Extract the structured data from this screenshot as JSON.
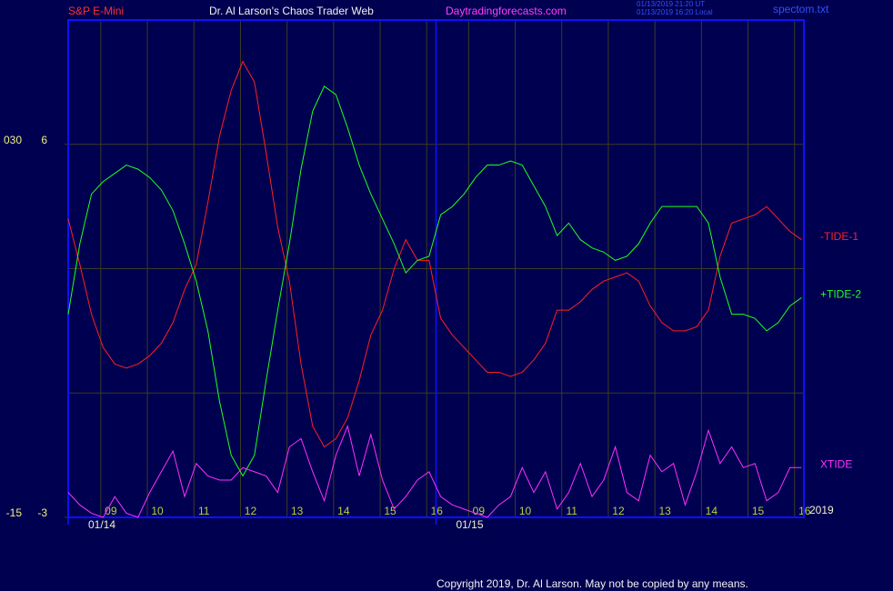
{
  "chart_data": {
    "type": "line",
    "header": {
      "symbol": "S&P E-Mini",
      "title": "Dr. Al Larson's Chaos Trader Web",
      "site": "Daytradingforecasts.com",
      "time_ut": "01/13/2019 21:20 UT",
      "time_local": "01/13/2019 16:20 Local",
      "file": "spectom.txt"
    },
    "copyright": "Copyright 2019, Dr. Al Larson. May not be copied by any means.",
    "year": "2019",
    "x": [
      8.3,
      8.55,
      8.8,
      9.05,
      9.3,
      9.55,
      9.8,
      10.05,
      10.3,
      10.55,
      10.8,
      11.05,
      11.3,
      11.55,
      11.8,
      12.05,
      12.3,
      12.55,
      12.8,
      13.05,
      13.3,
      13.55,
      13.8,
      14.05,
      14.3,
      14.55,
      14.8,
      15.05,
      15.3,
      15.55,
      15.8,
      16.05,
      16.3,
      16.55,
      16.8,
      17.05,
      17.3,
      17.55,
      17.8,
      18.05,
      18.3,
      18.55,
      18.8,
      19.05,
      19.3,
      19.55,
      19.8,
      20.05,
      20.3,
      20.55,
      20.8,
      21.05,
      21.3,
      21.55,
      21.8,
      22.05,
      22.3,
      22.55,
      22.8,
      23.05,
      23.3,
      23.55,
      23.8,
      24.05
    ],
    "xlim": [
      8.3,
      24.1
    ],
    "xticks": [
      {
        "value": 9,
        "label": "09"
      },
      10,
      11,
      12,
      13,
      14,
      15,
      16,
      {
        "value": 16.9,
        "label": "09"
      },
      {
        "value": 17.9,
        "label": "10"
      },
      {
        "value": 18.9,
        "label": "11"
      },
      {
        "value": 19.9,
        "label": "12"
      },
      {
        "value": 20.9,
        "label": "13"
      },
      {
        "value": 21.9,
        "label": "14"
      },
      {
        "value": 22.9,
        "label": "15"
      },
      {
        "value": 23.9,
        "label": "16"
      }
    ],
    "dates": [
      {
        "value": 8.3,
        "label": "01/14"
      },
      {
        "value": 16.2,
        "label": "01/15"
      }
    ],
    "ylim": [
      -3,
      9
    ],
    "yticks": [
      6,
      -3
    ],
    "ygrid": [
      6,
      3,
      0,
      -3
    ],
    "y2lim": [
      -15,
      45
    ],
    "y2ticks": [
      {
        "value": 30,
        "label": "030"
      },
      -15
    ],
    "grid": true,
    "grid_color": "#3c3c22",
    "frame_color": "#1010ff",
    "series": [
      {
        "name": "-TIDE-1",
        "color": "#ff2020",
        "values": [
          4.2,
          3.1,
          1.9,
          1.1,
          0.7,
          0.6,
          0.7,
          0.9,
          1.2,
          1.7,
          2.5,
          3.1,
          4.6,
          6.2,
          7.3,
          8.0,
          7.5,
          5.8,
          4.0,
          2.7,
          0.7,
          -0.8,
          -1.3,
          -1.1,
          -0.6,
          0.3,
          1.4,
          2.0,
          3.0,
          3.7,
          3.2,
          3.2,
          1.8,
          1.4,
          1.1,
          0.8,
          0.5,
          0.5,
          0.4,
          0.5,
          0.8,
          1.2,
          2.0,
          2.0,
          2.2,
          2.5,
          2.7,
          2.8,
          2.9,
          2.7,
          2.1,
          1.7,
          1.5,
          1.5,
          1.6,
          2.0,
          3.3,
          4.1,
          4.2,
          4.3,
          4.5,
          4.2,
          3.9,
          3.7
        ]
      },
      {
        "name": "+TIDE-2",
        "color": "#20ff20",
        "values": [
          1.9,
          3.6,
          4.8,
          5.1,
          5.3,
          5.5,
          5.4,
          5.2,
          4.9,
          4.4,
          3.6,
          2.7,
          1.5,
          -0.2,
          -1.5,
          -2.0,
          -1.5,
          0.3,
          2.0,
          3.6,
          5.4,
          6.8,
          7.4,
          7.2,
          6.4,
          5.5,
          4.8,
          4.2,
          3.6,
          2.9,
          3.2,
          3.3,
          4.3,
          4.5,
          4.8,
          5.2,
          5.5,
          5.5,
          5.6,
          5.5,
          5.0,
          4.5,
          3.8,
          4.1,
          3.7,
          3.5,
          3.4,
          3.2,
          3.3,
          3.6,
          4.1,
          4.5,
          4.5,
          4.5,
          4.5,
          4.1,
          2.8,
          1.9,
          1.9,
          1.8,
          1.5,
          1.7,
          2.1,
          2.3
        ]
      },
      {
        "name": "XTIDE",
        "color": "#ff30ff",
        "values": [
          -2.4,
          -2.7,
          -2.9,
          -3.0,
          -2.5,
          -2.9,
          -3.0,
          -2.4,
          -1.9,
          -1.4,
          -2.5,
          -1.7,
          -2.0,
          -2.1,
          -2.1,
          -1.8,
          -1.9,
          -2.0,
          -2.4,
          -1.3,
          -1.1,
          -1.9,
          -2.6,
          -1.5,
          -0.8,
          -2.0,
          -1.0,
          -2.1,
          -2.8,
          -2.5,
          -2.1,
          -1.9,
          -2.5,
          -2.7,
          -2.8,
          -2.9,
          -3.0,
          -2.7,
          -2.5,
          -1.8,
          -2.4,
          -1.9,
          -2.8,
          -2.4,
          -1.7,
          -2.5,
          -2.1,
          -1.3,
          -2.4,
          -2.6,
          -1.5,
          -1.9,
          -1.7,
          -2.7,
          -1.9,
          -0.9,
          -1.7,
          -1.3,
          -1.8,
          -1.7,
          -2.6,
          -2.4,
          -1.8,
          -1.8
        ]
      }
    ]
  }
}
